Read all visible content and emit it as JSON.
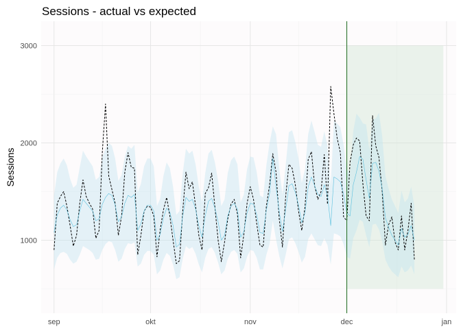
{
  "chart_data": {
    "type": "line",
    "title": "Sessions - actual vs expected",
    "xlabel": "",
    "ylabel": "Sessions",
    "x_ticks": [
      "sep",
      "okt",
      "nov",
      "dec",
      "jan"
    ],
    "y_ticks": [
      1000,
      2000,
      3000
    ],
    "ylim": [
      250,
      3250
    ],
    "xlim": [
      "2021-08-28",
      "2022-01-04"
    ],
    "grid": true,
    "legend": "none",
    "marker_date": "2021-12-01",
    "highlight": {
      "x": [
        "2021-12-01",
        "2021-12-31"
      ],
      "y": [
        500,
        3000
      ]
    },
    "series": [
      {
        "style": "dashed",
        "color": "#000000",
        "values": [
          900,
          1380,
          1450,
          1500,
          1350,
          1150,
          940,
          1050,
          1380,
          1620,
          1450,
          1380,
          1320,
          1020,
          1100,
          1900,
          2400,
          1660,
          1520,
          1380,
          1050,
          1250,
          1700,
          1900,
          1750,
          1740,
          850,
          1050,
          1300,
          1350,
          1340,
          1250,
          830,
          1110,
          1310,
          1440,
          1250,
          1000,
          760,
          790,
          1300,
          1700,
          1530,
          1600,
          1350,
          1050,
          900,
          1480,
          1540,
          1690,
          1340,
          1000,
          780,
          980,
          1220,
          1370,
          1420,
          1270,
          820,
          1060,
          1380,
          1550,
          1420,
          1170,
          950,
          930,
          1350,
          1570,
          1890,
          1700,
          1220,
          930,
          1450,
          1780,
          1740,
          1570,
          1300,
          1100,
          1340,
          1830,
          1910,
          1560,
          1420,
          1500,
          1880,
          1370,
          2580,
          2300,
          2050,
          1900,
          1240,
          1200,
          1800,
          1980,
          2050,
          2020,
          1580,
          1250,
          1200,
          2280,
          1970,
          1850,
          1500,
          950,
          1160,
          1240,
          980,
          900,
          1250,
          900,
          1100,
          1380,
          800
        ]
      },
      {
        "style": "solid",
        "color": "#5bc0de",
        "values": [
          1080,
          1260,
          1330,
          1360,
          1310,
          1210,
          1140,
          1160,
          1300,
          1420,
          1380,
          1340,
          1300,
          1200,
          1220,
          1370,
          1440,
          1480,
          1460,
          1360,
          1190,
          1240,
          1380,
          1460,
          1440,
          1470,
          1100,
          1170,
          1300,
          1360,
          1360,
          1300,
          1000,
          1060,
          1230,
          1330,
          1290,
          1150,
          930,
          960,
          1250,
          1440,
          1400,
          1420,
          1320,
          1150,
          1030,
          1250,
          1400,
          1430,
          1330,
          1190,
          1000,
          1050,
          1250,
          1350,
          1380,
          1320,
          1030,
          1090,
          1280,
          1380,
          1370,
          1260,
          1080,
          1070,
          1310,
          1480,
          1840,
          1550,
          1290,
          1090,
          1310,
          1560,
          1580,
          1490,
          1360,
          1180,
          1280,
          1550,
          1650,
          1560,
          1470,
          1450,
          1570,
          1460,
          1150,
          1650,
          1630,
          1600,
          1470,
          1280,
          1250,
          1570,
          1700,
          1860,
          1830,
          1620,
          1430,
          1790,
          1800,
          1710,
          1530,
          1230,
          1130,
          1050,
          1000,
          950,
          1120,
          1030,
          1060,
          1150,
          1000
        ]
      },
      {
        "style": "band",
        "color": "#bfe3f0",
        "lower": [
          700,
          820,
          870,
          880,
          860,
          800,
          760,
          780,
          850,
          940,
          920,
          900,
          870,
          800,
          810,
          900,
          960,
          990,
          980,
          900,
          780,
          810,
          910,
          970,
          960,
          980,
          730,
          760,
          850,
          890,
          890,
          850,
          650,
          690,
          800,
          870,
          840,
          750,
          600,
          620,
          810,
          940,
          910,
          930,
          860,
          750,
          670,
          820,
          910,
          930,
          870,
          770,
          650,
          690,
          810,
          880,
          900,
          860,
          670,
          710,
          830,
          900,
          890,
          820,
          700,
          700,
          850,
          960,
          1200,
          1010,
          840,
          710,
          850,
          1010,
          1030,
          970,
          880,
          770,
          830,
          1010,
          1070,
          1010,
          950,
          940,
          1020,
          950,
          750,
          1070,
          1060,
          1040,
          960,
          830,
          810,
          1020,
          1100,
          1210,
          1190,
          1050,
          930,
          1160,
          1170,
          1110,
          990,
          800,
          730,
          680,
          650,
          620,
          730,
          670,
          690,
          740,
          650
        ],
        "upper": [
          1460,
          1700,
          1790,
          1840,
          1770,
          1630,
          1540,
          1570,
          1750,
          1920,
          1860,
          1810,
          1760,
          1620,
          1650,
          1850,
          1940,
          2000,
          1970,
          1840,
          1610,
          1670,
          1860,
          1970,
          1940,
          1980,
          1490,
          1580,
          1760,
          1840,
          1840,
          1760,
          1350,
          1430,
          1660,
          1800,
          1740,
          1550,
          1260,
          1300,
          1690,
          1940,
          1890,
          1920,
          1780,
          1550,
          1390,
          1690,
          1890,
          1930,
          1800,
          1610,
          1350,
          1420,
          1690,
          1820,
          1860,
          1780,
          1390,
          1470,
          1730,
          1860,
          1850,
          1700,
          1460,
          1440,
          1770,
          2000,
          2170,
          2090,
          1740,
          1470,
          1770,
          2110,
          2130,
          2010,
          1840,
          1590,
          1730,
          2090,
          2230,
          2110,
          1980,
          1960,
          2120,
          1970,
          1560,
          2230,
          2200,
          2160,
          1980,
          1730,
          1690,
          2120,
          2300,
          2260,
          2200,
          2190,
          1930,
          2240,
          2250,
          2310,
          2070,
          1660,
          1530,
          1420,
          1350,
          1280,
          1510,
          1390,
          1430,
          1550,
          1350
        ]
      }
    ]
  }
}
